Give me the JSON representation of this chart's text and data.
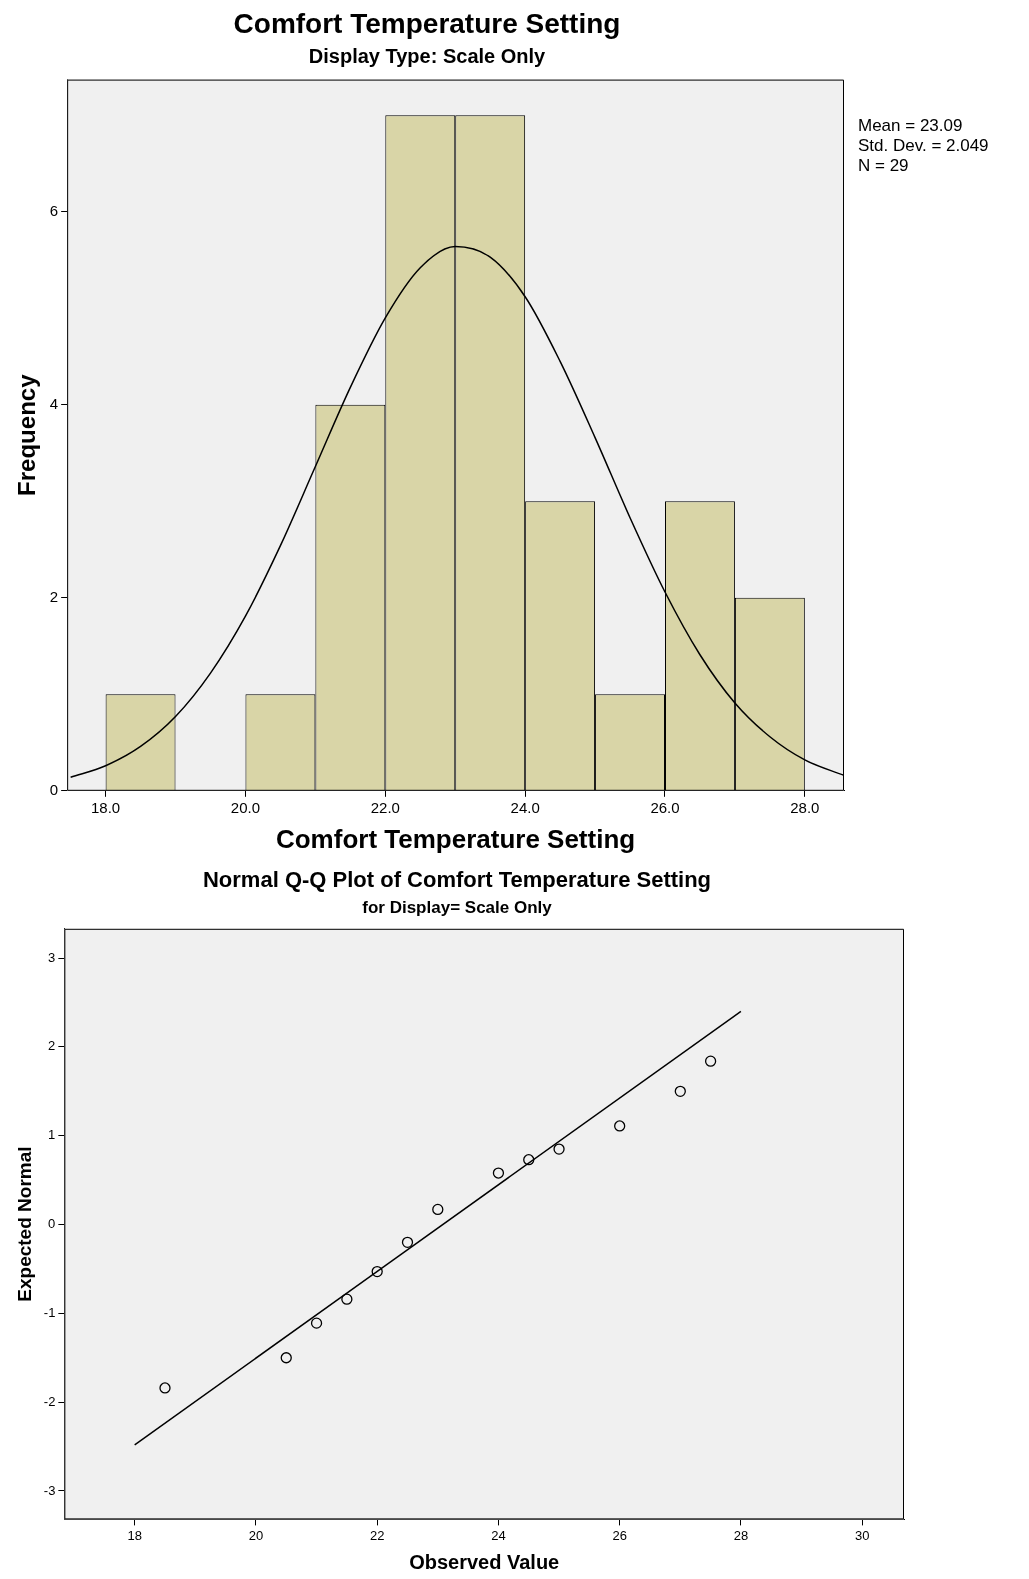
{
  "chart_data": [
    {
      "type": "histogram",
      "title": "Comfort Temperature Setting",
      "subtitle": "Display Type: Scale Only",
      "xlabel": "Comfort Temperature Setting",
      "ylabel": "Frequency",
      "bins": [
        18,
        19,
        20,
        21,
        22,
        23,
        24,
        25,
        26,
        27,
        28
      ],
      "values": [
        1,
        0,
        1,
        4,
        7,
        7,
        3,
        1,
        3,
        2
      ],
      "color": "#d9d5a7",
      "series": [
        {
          "type": "line",
          "color": "#000000",
          "x": [
            17.5,
            18,
            18.5,
            19,
            19.5,
            20,
            20.5,
            21,
            21.5,
            22,
            22.5,
            23,
            23.5,
            24,
            24.5,
            25,
            25.5,
            26,
            26.5,
            27,
            27.5,
            28,
            28.56
          ],
          "values": [
            0.14,
            0.26,
            0.46,
            0.77,
            1.22,
            1.81,
            2.54,
            3.36,
            4.18,
            4.9,
            5.42,
            5.64,
            5.53,
            5.12,
            4.45,
            3.66,
            2.83,
            2.06,
            1.41,
            0.91,
            0.56,
            0.32,
            0.16
          ]
        }
      ],
      "xlim": [
        17.45,
        28.56
      ],
      "xticks": [
        {
          "value": 18,
          "label": "18.0"
        },
        {
          "value": 20,
          "label": "20.0"
        },
        {
          "value": 22,
          "label": "22.0"
        },
        {
          "value": 24,
          "label": "24.0"
        },
        {
          "value": 26,
          "label": "26.0"
        },
        {
          "value": 28,
          "label": "28.0"
        }
      ],
      "ylim": [
        0,
        7.37
      ],
      "yticks": [
        0,
        2,
        4,
        6
      ],
      "grid": false,
      "legend": false,
      "annotations": [
        "Mean = 23.09",
        "Std. Dev. = 2.049",
        "N = 29"
      ]
    },
    {
      "type": "scatter",
      "title": "Normal Q-Q Plot of Comfort Temperature Setting",
      "subtitle": "for Display= Scale Only",
      "xlabel": "Observed Value",
      "ylabel": "Expected Normal",
      "series": [
        {
          "type": "scatter",
          "color": "#000000",
          "marker": "circle",
          "x": [
            18.5,
            20.5,
            21,
            21.5,
            22,
            22.5,
            23,
            24,
            24.5,
            25,
            26,
            27,
            27.5
          ],
          "values": [
            -1.84,
            -1.5,
            -1.11,
            -0.84,
            -0.53,
            -0.2,
            0.17,
            0.58,
            0.73,
            0.85,
            1.11,
            1.5,
            1.84
          ]
        },
        {
          "type": "line",
          "color": "#000000",
          "x": [
            18,
            28
          ],
          "values": [
            -2.48,
            2.4
          ]
        }
      ],
      "xlim": [
        16.84,
        30.69
      ],
      "xticks": [
        18,
        20,
        22,
        24,
        26,
        28,
        30
      ],
      "ylim": [
        -3.32,
        3.33
      ],
      "yticks": [
        -3,
        -2,
        -1,
        0,
        1,
        2,
        3
      ],
      "grid": false,
      "legend": false
    }
  ]
}
